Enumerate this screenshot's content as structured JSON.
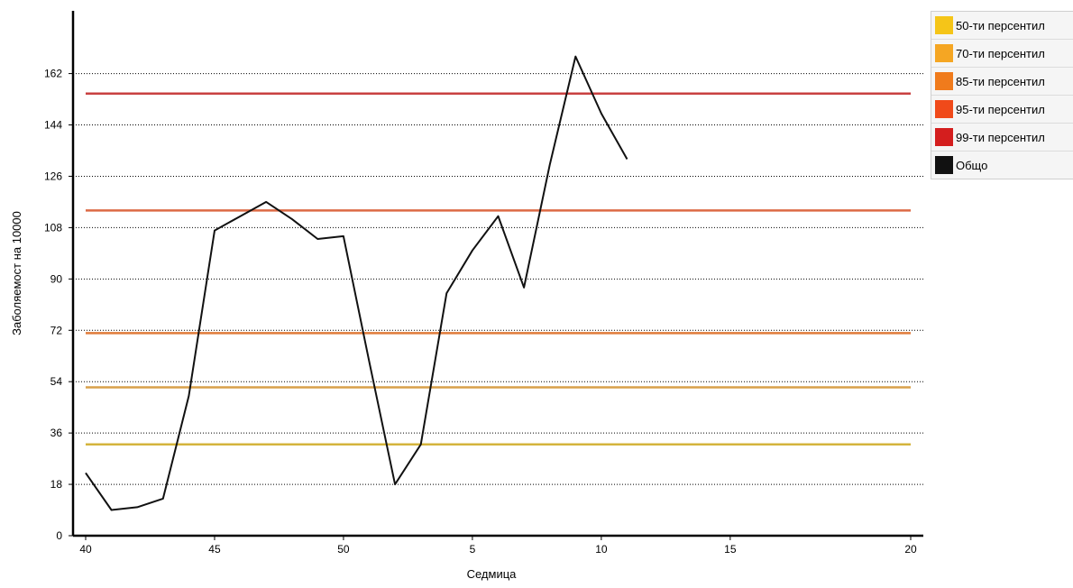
{
  "chart_data": {
    "type": "line",
    "xlabel": "Седмица",
    "ylabel": "Заболяемост на 10000",
    "x_tick_labels": [
      "40",
      "45",
      "50",
      "5",
      "10",
      "15",
      "20"
    ],
    "y_ticks": [
      0,
      18,
      36,
      54,
      72,
      90,
      108,
      126,
      144,
      162
    ],
    "ylim": [
      0,
      184
    ],
    "grid": "horizontal-dotted",
    "legend_position": "right",
    "percentile_lines": [
      {
        "name": "50-ти персентил",
        "color": "#f5c518",
        "line_color": "#d4b43c",
        "value": 32
      },
      {
        "name": "70-ти персентил",
        "color": "#f5a623",
        "line_color": "#d9a04a",
        "value": 52
      },
      {
        "name": "85-ти персентил",
        "color": "#f07b1c",
        "line_color": "#e07b3a",
        "value": 71
      },
      {
        "name": "95-ти персентил",
        "color": "#f04a1a",
        "line_color": "#dc6a45",
        "value": 114
      },
      {
        "name": "99-ти персентил",
        "color": "#d41e1e",
        "line_color": "#c94040",
        "value": 155
      }
    ],
    "series": [
      {
        "name": "Общо",
        "color": "#111111",
        "x": [
          40,
          41,
          42,
          43,
          44,
          45,
          46,
          47,
          48,
          49,
          50,
          51,
          52,
          53,
          54,
          55,
          56,
          57,
          58,
          59,
          60,
          61,
          62
        ],
        "values": [
          22,
          9,
          10,
          13,
          49,
          107,
          112,
          117,
          111,
          104,
          105,
          61,
          18,
          32,
          85,
          100,
          112,
          87,
          130,
          168,
          148,
          132,
          null
        ]
      }
    ]
  }
}
